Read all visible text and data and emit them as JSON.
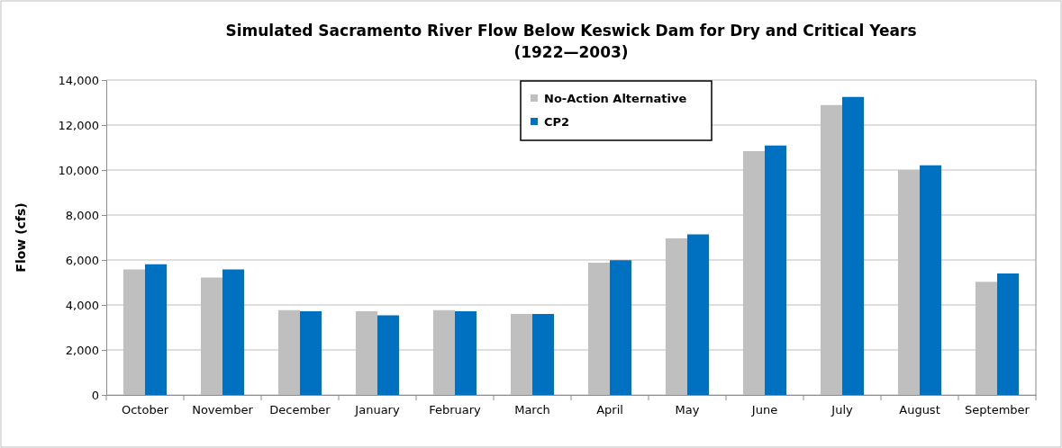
{
  "chart_data": {
    "type": "bar",
    "title": "Simulated Sacramento River Flow Below Keswick Dam for Dry and Critical Years (1922—2003)",
    "ylabel": "Flow (cfs)",
    "categories": [
      "October",
      "November",
      "December",
      "January",
      "February",
      "March",
      "April",
      "May",
      "June",
      "July",
      "August",
      "September"
    ],
    "series": [
      {
        "name": "No-Action Alternative",
        "color": "#bfbfbf",
        "values": [
          5580,
          5220,
          3770,
          3720,
          3770,
          3600,
          5880,
          6960,
          10840,
          12890,
          10000,
          5030
        ]
      },
      {
        "name": "CP2",
        "color": "#0070c0",
        "values": [
          5810,
          5580,
          3720,
          3540,
          3720,
          3600,
          5990,
          7140,
          11090,
          13250,
          10210,
          5400
        ]
      }
    ],
    "ylim": [
      0,
      14000
    ],
    "yticks": [
      {
        "value": 0,
        "label": "0"
      },
      {
        "value": 2000,
        "label": "2,000"
      },
      {
        "value": 4000,
        "label": "4,000"
      },
      {
        "value": 6000,
        "label": "6,000"
      },
      {
        "value": 8000,
        "label": "8,000"
      },
      {
        "value": 10000,
        "label": "10,000"
      },
      {
        "value": 12000,
        "label": "12,000"
      },
      {
        "value": 14000,
        "label": "14,000"
      }
    ],
    "grid": "y",
    "legend": "top"
  }
}
